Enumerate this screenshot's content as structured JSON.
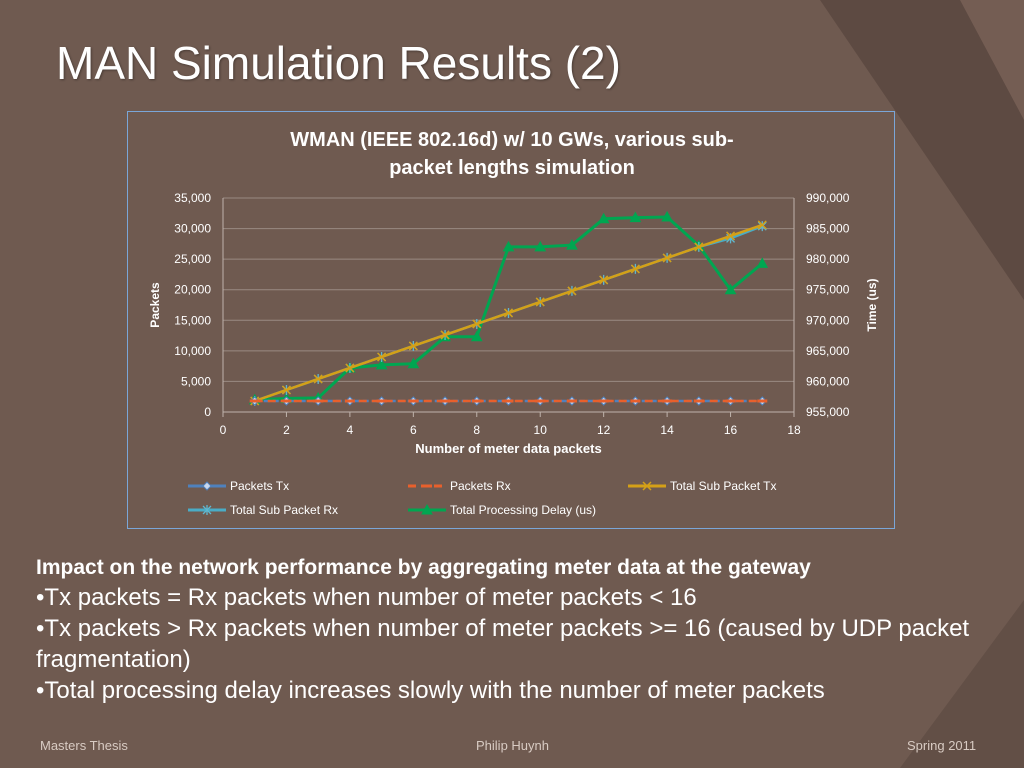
{
  "slide": {
    "title": "MAN Simulation Results (2)",
    "impact": "Impact on the network performance by aggregating  meter data at the gateway",
    "bullets": [
      "•Tx packets = Rx packets when number of meter packets < 16",
      "•Tx packets > Rx packets when number of meter packets >= 16 (caused by UDP packet fragmentation)",
      "•Total processing delay increases slowly with the number of meter packets"
    ],
    "footer": {
      "left": "Masters Thesis",
      "center": "Philip Huynh",
      "right": "Spring 2011"
    }
  },
  "colors": {
    "background": "#6f5a50",
    "accent": "#7aa6d8"
  },
  "chart_data": {
    "type": "line",
    "title_lines": [
      "WMAN (IEEE 802.16d) w/ 10 GWs, various sub-",
      "packet lengths simulation"
    ],
    "xlabel": "Number of meter data packets",
    "ylabel": "Packets",
    "y2label": "Time (us)",
    "xlim": [
      0,
      18
    ],
    "ylim": [
      0,
      35000
    ],
    "y2lim": [
      955000,
      990000
    ],
    "xticks": [
      "0",
      "2",
      "4",
      "6",
      "8",
      "10",
      "12",
      "14",
      "16",
      "18"
    ],
    "yticks": [
      "0",
      "5,000",
      "10,000",
      "15,000",
      "20,000",
      "25,000",
      "30,000",
      "35,000"
    ],
    "y2ticks": [
      "955,000",
      "960,000",
      "965,000",
      "970,000",
      "975,000",
      "980,000",
      "985,000",
      "990,000"
    ],
    "grid": true,
    "legend_position": "bottom",
    "x": [
      1,
      2,
      3,
      4,
      5,
      6,
      7,
      8,
      9,
      10,
      11,
      12,
      13,
      14,
      15,
      16,
      17
    ],
    "series": [
      {
        "name": "Packets Tx",
        "axis": "left",
        "color": "#4f81bd",
        "marker": "diamond",
        "values": [
          1800,
          1800,
          1800,
          1800,
          1800,
          1800,
          1800,
          1800,
          1800,
          1800,
          1800,
          1800,
          1800,
          1800,
          1800,
          1800,
          1800
        ]
      },
      {
        "name": "Packets Rx",
        "axis": "left",
        "color": "#e8602c",
        "marker": "dash",
        "values": [
          1800,
          1800,
          1800,
          1800,
          1800,
          1800,
          1800,
          1800,
          1800,
          1800,
          1800,
          1800,
          1800,
          1800,
          1800,
          1800,
          1800
        ]
      },
      {
        "name": "Total Sub Packet Tx",
        "axis": "left",
        "color": "#d4a017",
        "marker": "x",
        "values": [
          1800,
          3600,
          5400,
          7200,
          9000,
          10800,
          12600,
          14400,
          16200,
          18000,
          19800,
          21600,
          23400,
          25200,
          27000,
          28800,
          30600
        ]
      },
      {
        "name": "Total Sub Packet Rx",
        "axis": "left",
        "color": "#4aacc6",
        "marker": "star",
        "values": [
          1800,
          3600,
          5400,
          7200,
          9000,
          10800,
          12600,
          14400,
          16200,
          18000,
          19800,
          21600,
          23400,
          25200,
          27000,
          28400,
          30400
        ]
      },
      {
        "name": "Total Processing Delay (us)",
        "axis": "right",
        "color": "#00a651",
        "marker": "triangle",
        "values": [
          957000,
          957200,
          957300,
          962200,
          962700,
          962900,
          967300,
          967300,
          982000,
          982000,
          982300,
          986600,
          986800,
          986900,
          982200,
          975000,
          979300
        ]
      }
    ]
  }
}
